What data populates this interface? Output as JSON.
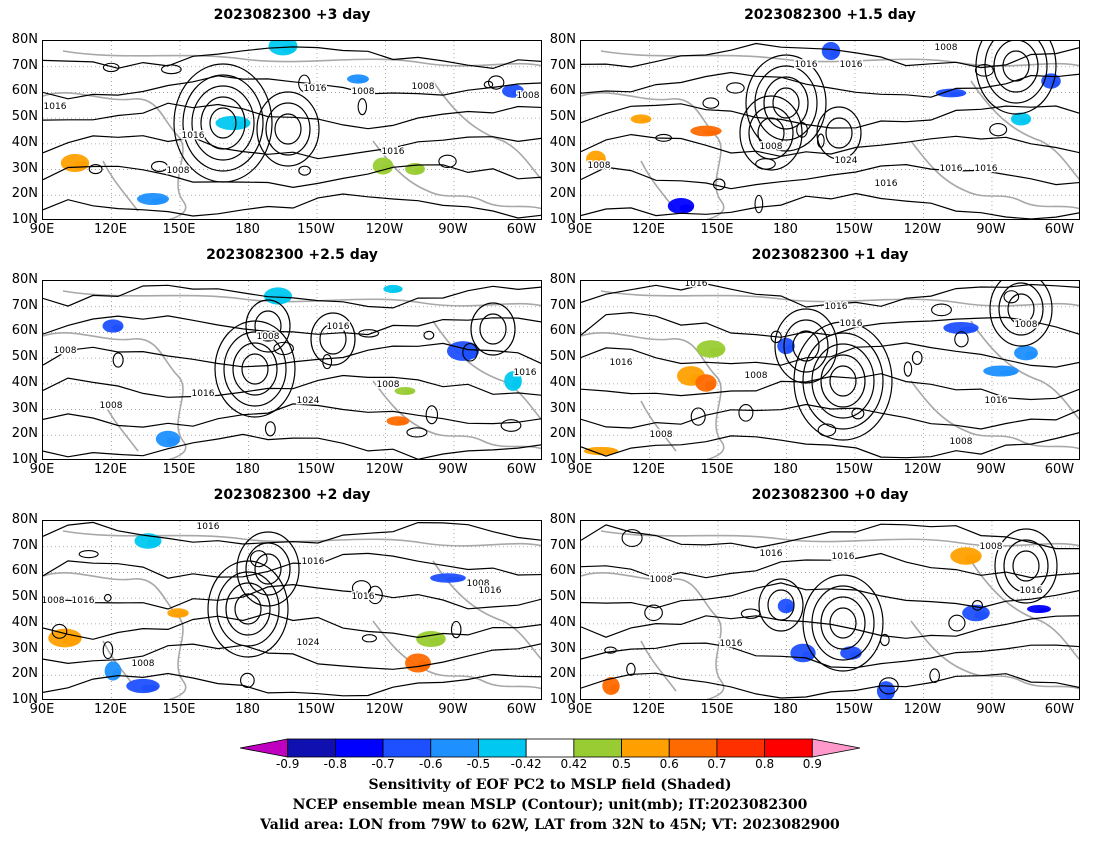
{
  "panels": [
    {
      "id": "p1",
      "title": "2023082300 +3 day"
    },
    {
      "id": "p2",
      "title": "2023082300 +1.5 day"
    },
    {
      "id": "p3",
      "title": "2023082300 +2.5 day"
    },
    {
      "id": "p4",
      "title": "2023082300 +1 day"
    },
    {
      "id": "p5",
      "title": "2023082300 +2 day"
    },
    {
      "id": "p6",
      "title": "2023082300 +0 day"
    }
  ],
  "lat_labels": [
    "80N",
    "70N",
    "60N",
    "50N",
    "40N",
    "30N",
    "20N",
    "10N"
  ],
  "lon_labels": [
    "90E",
    "120E",
    "150E",
    "180",
    "150W",
    "120W",
    "90W",
    "60W"
  ],
  "contour_labels": [
    "1008",
    "1016",
    "1024"
  ],
  "colorbar": {
    "levels": [
      "-0.9",
      "-0.8",
      "-0.7",
      "-0.6",
      "-0.5",
      "-0.42",
      "0.42",
      "0.5",
      "0.6",
      "0.7",
      "0.8",
      "0.9"
    ],
    "colors": [
      "#c000c0",
      "#1010b0",
      "#0000ff",
      "#1e50ff",
      "#1e90ff",
      "#00c8f0",
      "#ffffff",
      "#99cc33",
      "#ffa000",
      "#ff6a00",
      "#ff3000",
      "#ff0000",
      "#ff99cc"
    ]
  },
  "caption": {
    "line1": "Sensitivity of EOF PC2 to MSLP field (Shaded)",
    "line2": "NCEP ensemble mean MSLP (Contour); unit(mb); IT:2023082300",
    "line3": "Valid area: LON from 79W to 62W, LAT from 32N to 45N; VT: 2023082900"
  }
}
